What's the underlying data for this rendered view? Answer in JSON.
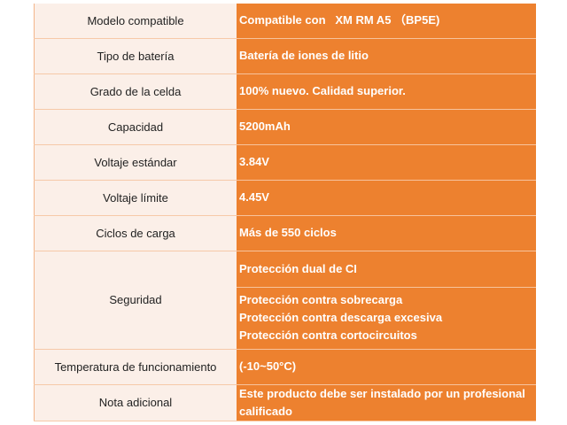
{
  "colors": {
    "label_bg": "#fbefe8",
    "value_bg": "#ed812f",
    "value_text": "#ffffff",
    "label_text": "#222222"
  },
  "rows": [
    {
      "label": "Modelo compatible",
      "value": "Compatible con   XM RM A5 （BP5E)"
    },
    {
      "label": "Tipo de batería",
      "value": "Batería de iones de litio"
    },
    {
      "label": "Grado de la celda",
      "value": "100% nuevo. Calidad superior."
    },
    {
      "label": "Capacidad",
      "value": "5200mAh"
    },
    {
      "label": "Voltaje estándar",
      "value": "3.84V"
    },
    {
      "label": "Voltaje límite",
      "value": "4.45V"
    },
    {
      "label": "Ciclos de carga",
      "value": "Más de 550 ciclos"
    }
  ],
  "security": {
    "label": "Seguridad",
    "values": [
      "Protección dual de CI",
      "Protección contra sobrecarga",
      "Protección contra descarga excesiva",
      "Protección contra cortocircuitos"
    ]
  },
  "temperature": {
    "label": "Temperatura de funcionamiento",
    "value": "(-10~50°C)"
  },
  "note": {
    "label": "Nota adicional",
    "value": "Este producto debe ser instalado por un profesional calificado"
  }
}
